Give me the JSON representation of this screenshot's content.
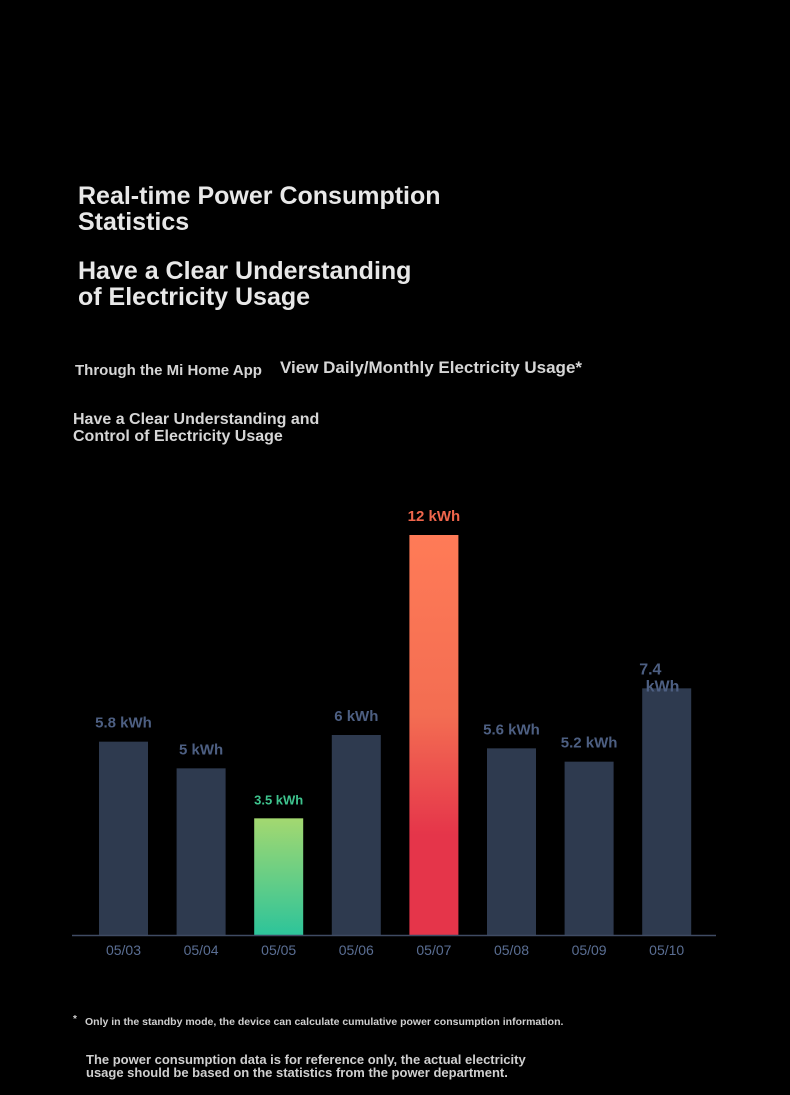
{
  "header": {
    "title_line1": "Real-time Power Consumption\n Statistics",
    "title_line2": "Have a Clear Understanding\n of Electricity Usage",
    "subtitle_left": "Through the Mi Home App",
    "subtitle_right": "View Daily/Monthly Electricity Usage*",
    "subtitle_bottom": "Have a Clear Understanding and\n Control of Electricity Usage"
  },
  "chart_data": {
    "type": "bar",
    "categories": [
      "05/03",
      "05/04",
      "05/05",
      "05/06",
      "05/07",
      "05/08",
      "05/09",
      "05/10"
    ],
    "values": [
      5.8,
      5,
      3.5,
      6,
      12,
      5.6,
      5.2,
      7.4
    ],
    "labels": [
      "5.8 kWh",
      "5 kWh",
      "3.5 kWh",
      "6 kWh",
      "12 kWh",
      "5.6 kWh",
      "5.2 kWh",
      "7.4\n kWh"
    ],
    "unit": "kWh",
    "highlight": {
      "min_index": 2,
      "max_index": 4
    },
    "colors": {
      "bar": "#2e3a4f",
      "label": "#4d5f82",
      "min_gradient": [
        "#a3d870",
        "#2dc49a"
      ],
      "min_label": "#3ec48e",
      "max_gradient": [
        "#ff7b57",
        "#f36d52",
        "#e5354a"
      ],
      "max_label": "#f0664c",
      "axis": "#3f4b63",
      "tick": "#5a6e93"
    },
    "ylim": [
      0,
      12
    ],
    "grid": false,
    "title": "",
    "xlabel": "",
    "ylabel": ""
  },
  "footnotes": {
    "star": "*",
    "note1": "Only in the standby mode, the device can calculate cumulative power consumption information.",
    "note2": "The power consumption data is for reference only, the actual electricity\n usage should be based on the statistics from the power department."
  }
}
